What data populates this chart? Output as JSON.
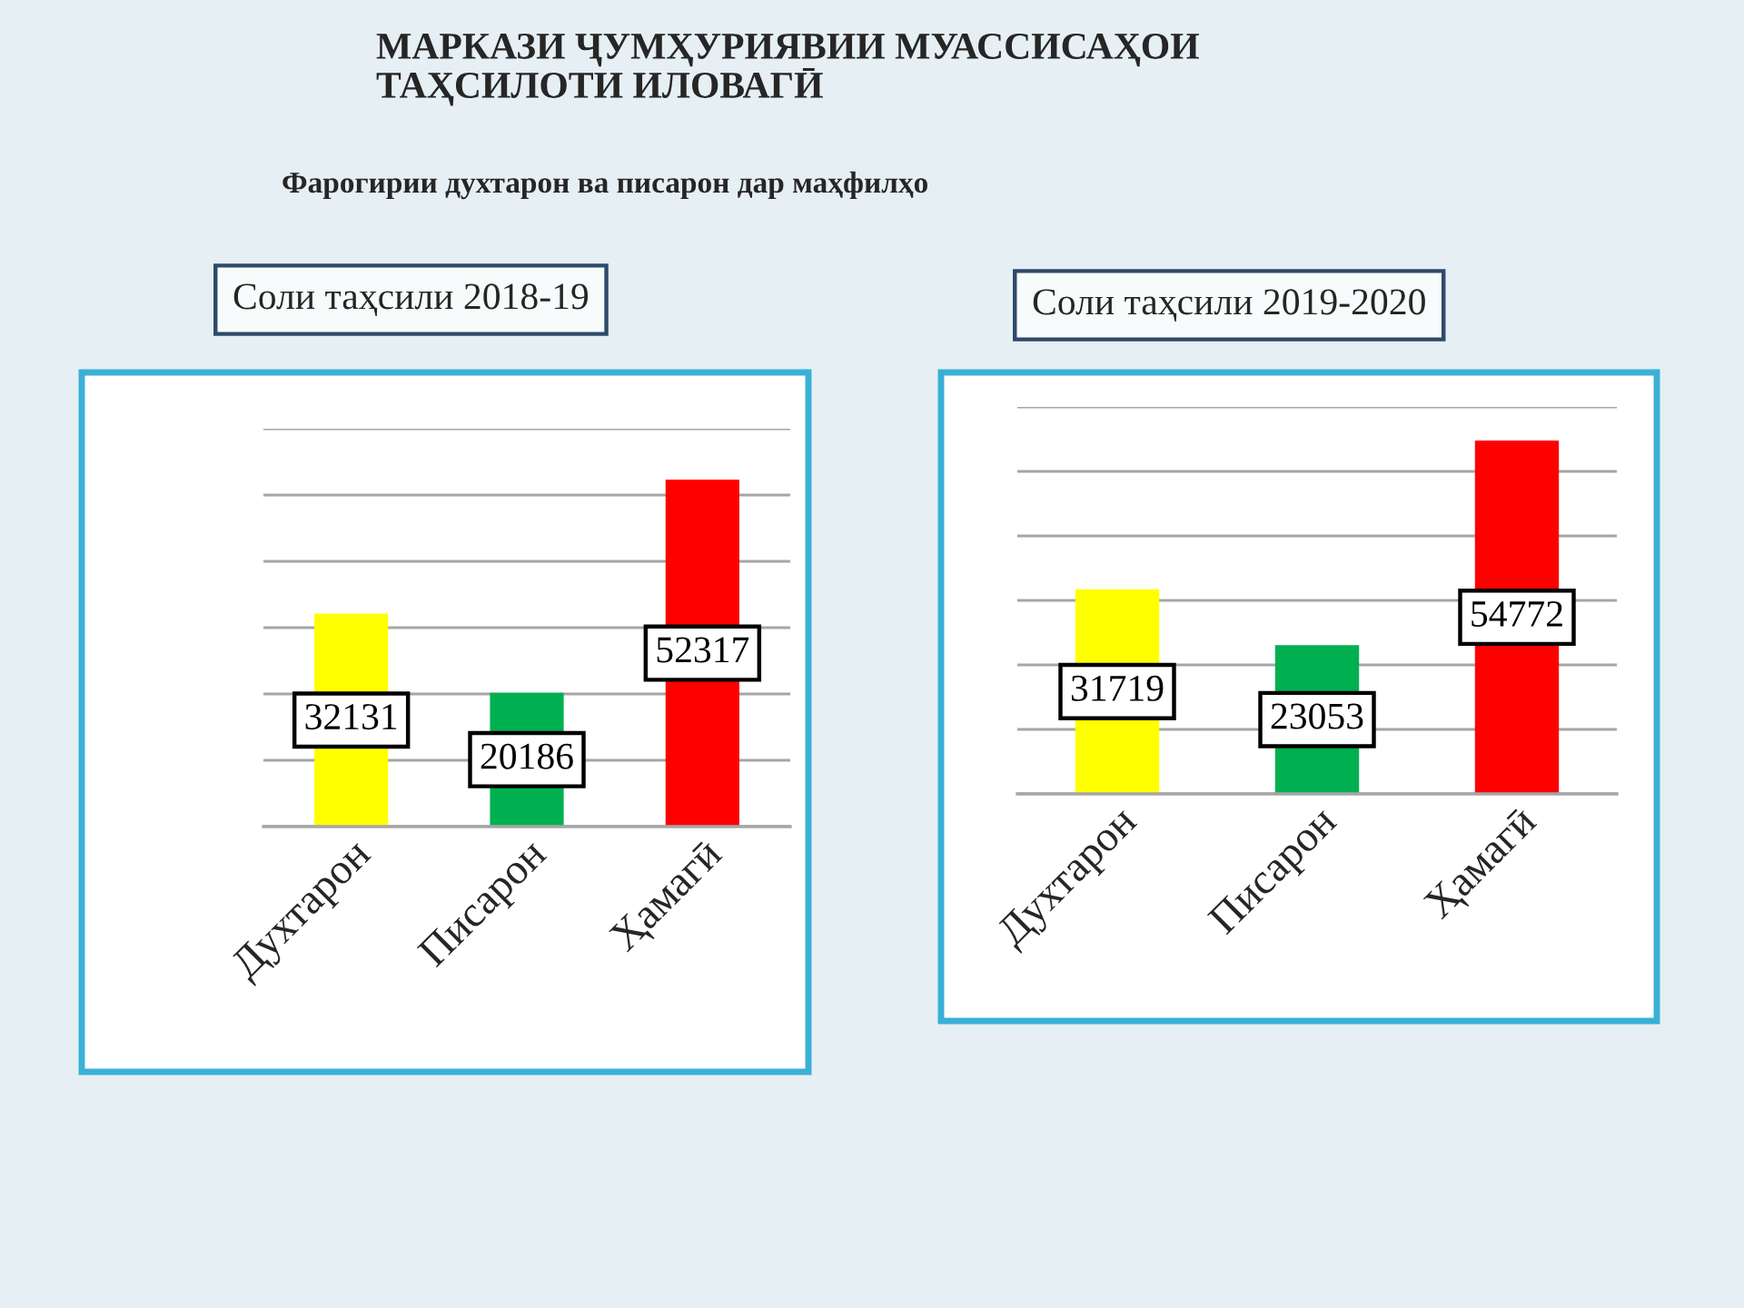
{
  "chart_data": [
    {
      "type": "bar",
      "title": "Соли таҳсили 2018-19",
      "annotations": [
        "МАРКАЗИ ҶУМҲУРИЯВИИ МУАССИСАҲОИ\nТАҲСИЛОТИ ИЛОВАГӢ",
        "Фарогирии духтарон ва писарон дар маҳфилҳо"
      ],
      "categories": [
        "Духтарон",
        "Писарон",
        "Ҳамагӣ"
      ],
      "values": [
        32131,
        20186,
        52317
      ],
      "colors": [
        "#ffff00",
        "#00b050",
        "#ff0000"
      ],
      "data_labels": true,
      "ylim": [
        0,
        60000
      ],
      "yticks": [
        {
          "value": 0,
          "label": null
        },
        {
          "value": 10000,
          "label": null
        },
        {
          "value": 20000,
          "label": null
        },
        {
          "value": 30000,
          "label": null
        },
        {
          "value": 40000,
          "label": null
        },
        {
          "value": 50000,
          "label": null
        },
        {
          "value": 60000,
          "label": null
        }
      ],
      "grid": "y",
      "tick_labels": "x"
    },
    {
      "type": "bar",
      "title": "Соли таҳсили 2019-2020",
      "categories": [
        "Духтарон",
        "Писарон",
        "Ҳамагӣ"
      ],
      "values": [
        31719,
        23053,
        54772
      ],
      "colors": [
        "#ffff00",
        "#00b050",
        "#ff0000"
      ],
      "data_labels": true,
      "ylim": [
        0,
        60000
      ],
      "yticks": [
        {
          "value": 0,
          "label": null
        },
        {
          "value": 10000,
          "label": null
        },
        {
          "value": 20000,
          "label": null
        },
        {
          "value": 30000,
          "label": null
        },
        {
          "value": 40000,
          "label": null
        },
        {
          "value": 50000,
          "label": null
        },
        {
          "value": 60000,
          "label": null
        }
      ],
      "grid": "y",
      "tick_labels": "x"
    }
  ]
}
